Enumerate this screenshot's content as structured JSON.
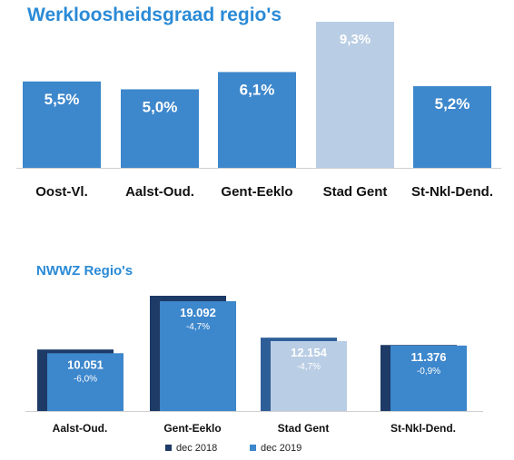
{
  "colors": {
    "bar": "#3d87cc",
    "highlight": "#b9cde4",
    "dark": "#1e3a66",
    "dark_highlight": "#2e5e98",
    "title": "#2a8ad6"
  },
  "chart_data": [
    {
      "type": "bar",
      "title": "Werkloosheidsgraad regio's",
      "categories": [
        "Oost-Vl.",
        "Aalst-Oud.",
        "Gent-Eeklo",
        "Stad Gent",
        "St-Nkl-Dend."
      ],
      "values": [
        5.5,
        5.0,
        6.1,
        9.3,
        5.2
      ],
      "value_labels": [
        "5,5%",
        "5,0%",
        "6,1%",
        "9,3%",
        "5,2%"
      ],
      "highlight_index": 3,
      "ylim": [
        0,
        9.3
      ],
      "grid": false
    },
    {
      "type": "bar",
      "title": "NWWZ Regio's",
      "categories": [
        "Aalst-Oud.",
        "Gent-Eeklo",
        "Stad Gent",
        "St-Nkl-Dend."
      ],
      "series": [
        {
          "name": "dec 2018",
          "values": [
            10692,
            20034,
            12753,
            11479
          ]
        },
        {
          "name": "dec 2019",
          "values": [
            10051,
            19092,
            12154,
            11376
          ]
        }
      ],
      "value_labels": [
        "10.051",
        "19.092",
        "12.154",
        "11.376"
      ],
      "change_labels": [
        "-6,0%",
        "-4,7%",
        "-4,7%",
        "-0,9%"
      ],
      "highlight_index": 2,
      "legend_position": "bottom",
      "grid": false
    }
  ]
}
